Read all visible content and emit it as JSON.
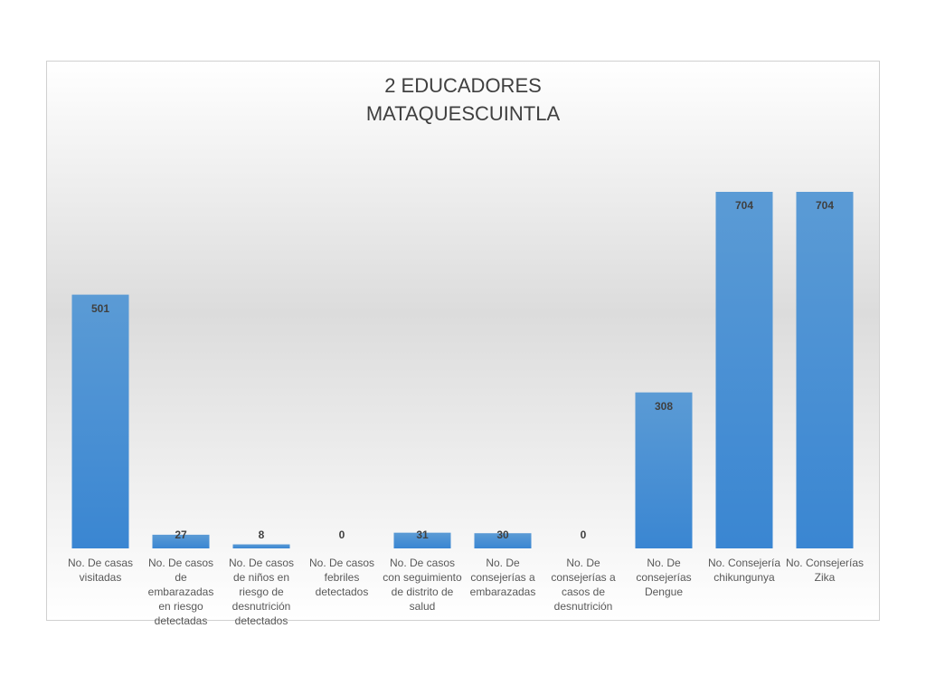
{
  "chart_data": {
    "type": "bar",
    "title": [
      "2 EDUCADORES",
      "MATAQUESCUINTLA"
    ],
    "categories": [
      "No. De casas visitadas",
      "No. De casos de embarazadas en riesgo detectadas",
      "No. De casos de niños en riesgo de desnutrición detectados",
      "No. De casos febriles detectados",
      "No. De casos con seguimiento de distrito de salud",
      "No. De consejerías a embarazadas",
      "No. De consejerías a casos de desnutrición",
      "No. De consejerías Dengue",
      "No. Consejería chikungunya",
      "No. Consejerías Zika"
    ],
    "values": [
      501,
      27,
      8,
      0,
      31,
      30,
      0,
      308,
      704,
      704
    ],
    "color": "#4a8fd6"
  }
}
